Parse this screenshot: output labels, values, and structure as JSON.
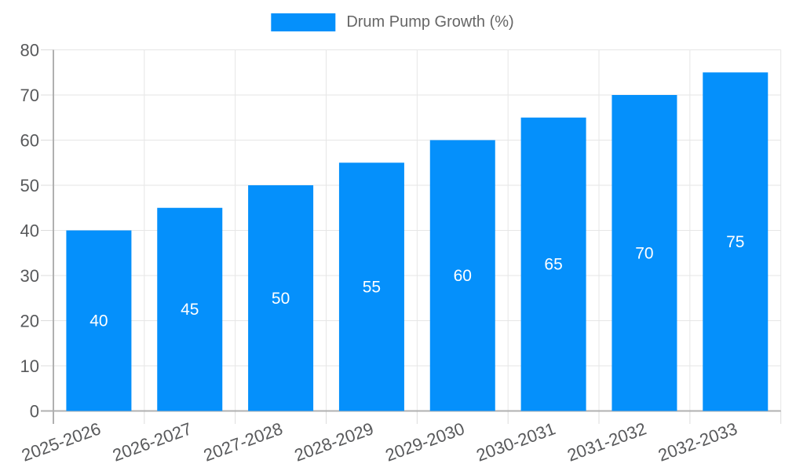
{
  "chart_data": {
    "type": "bar",
    "title": "",
    "legend": {
      "label": "Drum Pump Growth (%)",
      "position": "top"
    },
    "categories": [
      "2025-2026",
      "2026-2027",
      "2027-2028",
      "2028-2029",
      "2029-2030",
      "2030-2031",
      "2031-2032",
      "2032-2033"
    ],
    "series": [
      {
        "name": "Drum Pump Growth (%)",
        "values": [
          40,
          45,
          50,
          55,
          60,
          65,
          70,
          75
        ]
      }
    ],
    "bar_value_labels": [
      "40",
      "45",
      "50",
      "55",
      "60",
      "65",
      "70",
      "75"
    ],
    "ylabel": "",
    "xlabel": "",
    "ylim": [
      0,
      80
    ],
    "yticks": [
      0,
      10,
      20,
      30,
      40,
      50,
      60,
      70,
      80
    ],
    "grid": true,
    "x_label_rotation_deg": -20,
    "colors": {
      "bar": "#0590fb",
      "bar_value_label": "#ffffff",
      "grid": "#e6e6e6",
      "axis_line": "#b0b0b0",
      "tick_mark": "#dcdcdc",
      "axis_label": "#58595b",
      "legend_text": "#666666",
      "background": "#ffffff"
    }
  }
}
